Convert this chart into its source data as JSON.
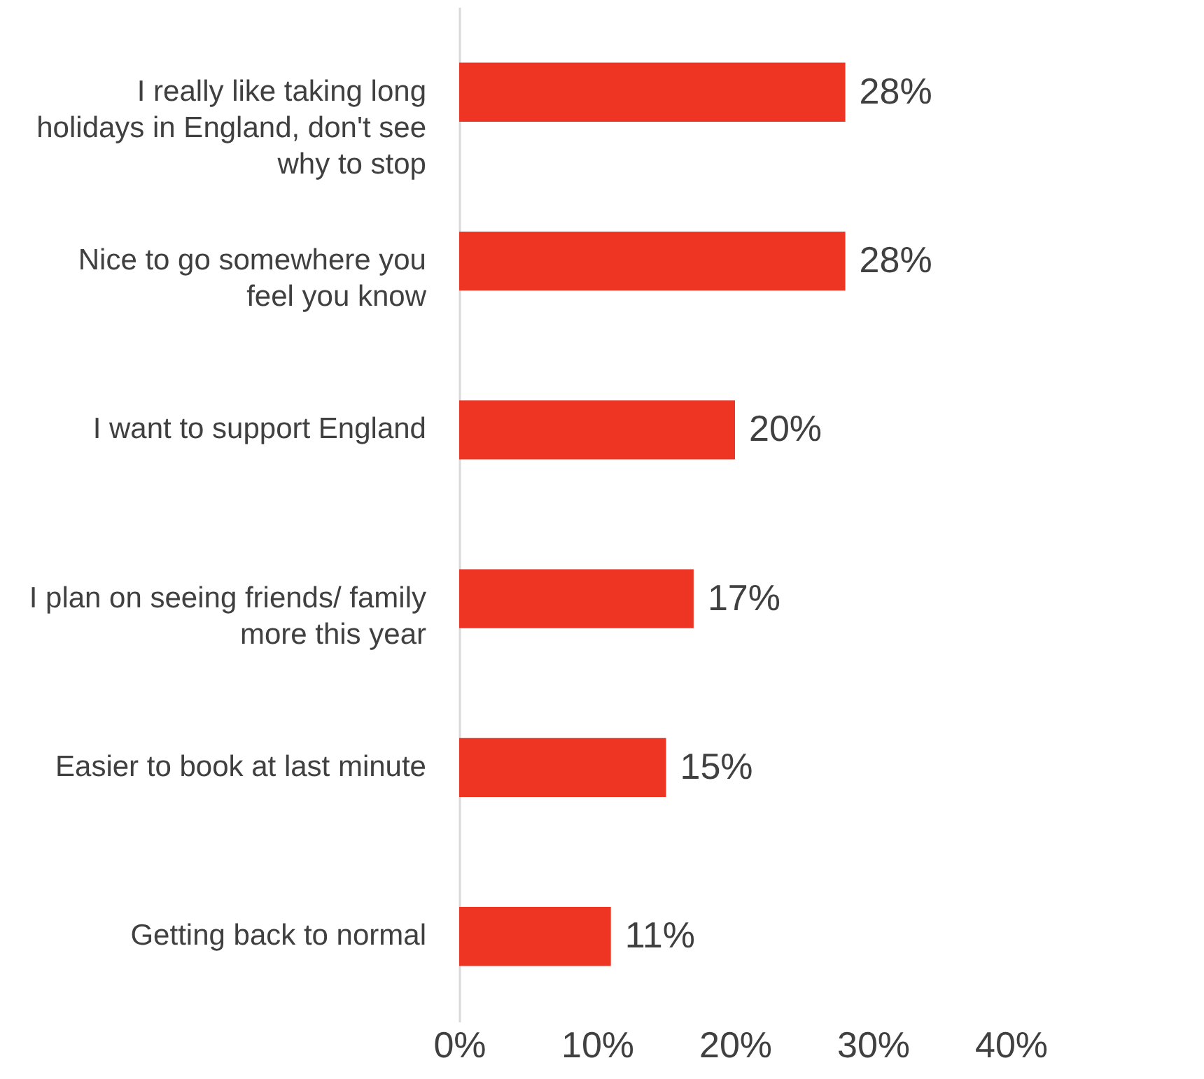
{
  "chart_data": {
    "type": "bar",
    "orientation": "horizontal",
    "categories": [
      "I really like taking long holidays in England, don't see why to stop",
      "Nice to go somewhere you feel you know",
      "I want to support England",
      "I plan on seeing friends/ family more this year",
      "Easier to book at last minute",
      "Getting back to normal"
    ],
    "values": [
      28,
      28,
      20,
      17,
      15,
      11
    ],
    "value_labels": [
      "28%",
      "28%",
      "20%",
      "17%",
      "15%",
      "11%"
    ],
    "color": "#ee3524",
    "xlim": [
      0,
      40
    ],
    "xticks": [
      {
        "value": 0,
        "label": "0%"
      },
      {
        "value": 10,
        "label": "10%"
      },
      {
        "value": 20,
        "label": "20%"
      },
      {
        "value": 30,
        "label": "30%"
      },
      {
        "value": 40,
        "label": "40%"
      }
    ],
    "grid": false
  }
}
